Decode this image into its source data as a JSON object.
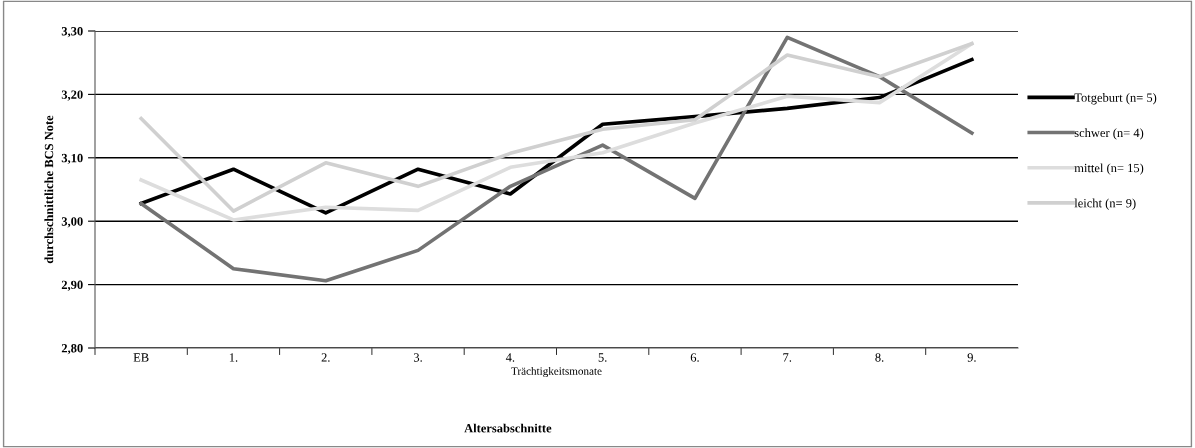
{
  "chart_data": {
    "type": "line",
    "ylabel": "durchschnittliche BCS Note",
    "xlabel": "Trächtigkeitsmonate",
    "annotations": [
      "Altersabschnitte"
    ],
    "categories": [
      "EB",
      "1.",
      "2.",
      "3.",
      "4.",
      "5.",
      "6.",
      "7.",
      "8.",
      "9."
    ],
    "series": [
      {
        "name": "Totgeburt (n= 5)",
        "color": "#000000",
        "values": [
          3.028,
          3.082,
          3.013,
          3.082,
          3.043,
          3.153,
          3.165,
          3.178,
          3.195,
          3.255
        ]
      },
      {
        "name": "schwer (n= 4)",
        "color": "#737373",
        "values": [
          3.028,
          2.925,
          2.906,
          2.954,
          3.055,
          3.12,
          3.036,
          3.29,
          3.228,
          3.139
        ]
      },
      {
        "name": "mittel (n= 15)",
        "color": "#dddddd",
        "values": [
          3.065,
          3.002,
          3.022,
          3.017,
          3.085,
          3.108,
          3.155,
          3.197,
          3.187,
          3.28
        ]
      },
      {
        "name": "leicht (n= 9)",
        "color": "#d0d0d0",
        "values": [
          3.162,
          3.016,
          3.092,
          3.055,
          3.107,
          3.145,
          3.16,
          3.262,
          3.228,
          3.28
        ]
      }
    ],
    "ylim": [
      2.8,
      3.3
    ],
    "yticks": [
      {
        "value": 2.8,
        "label": "2,80"
      },
      {
        "value": 2.9,
        "label": "2,90"
      },
      {
        "value": 3.0,
        "label": "3,00"
      },
      {
        "value": 3.1,
        "label": "3,10"
      },
      {
        "value": 3.2,
        "label": "3,20"
      },
      {
        "value": 3.3,
        "label": "3,30"
      }
    ],
    "grid": "y",
    "legend": "right",
    "marker": "none",
    "line_style": "solid"
  }
}
